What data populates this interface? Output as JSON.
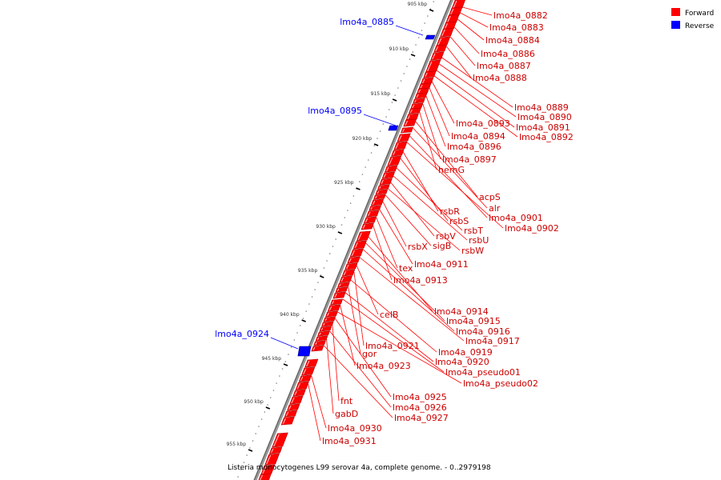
{
  "legend": {
    "forward": {
      "label": "Forward",
      "color": "#ff0000"
    },
    "reverse": {
      "label": "Reverse",
      "color": "#0000ff"
    }
  },
  "footer": "Listeria monocytogenes L99 serovar 4a, complete genome. - 0..2979198",
  "axis": {
    "ticks": [
      "905 kbp",
      "910 kbp",
      "915 kbp",
      "920 kbp",
      "925 kbp",
      "930 kbp",
      "935 kbp",
      "940 kbp",
      "945 kbp",
      "950 kbp",
      "955 kbp"
    ]
  },
  "reverse_genes": [
    "lmo4a_0885",
    "lmo4a_0895",
    "lmo4a_0924"
  ],
  "forward_genes": [
    "lmo4a_0882",
    "lmo4a_0883",
    "lmo4a_0884",
    "lmo4a_0886",
    "lmo4a_0887",
    "lmo4a_0888",
    "lmo4a_0889",
    "lmo4a_0890",
    "lmo4a_0891",
    "lmo4a_0892",
    "lmo4a_0893",
    "lmo4a_0894",
    "lmo4a_0896",
    "lmo4a_0897",
    "hemG",
    "acpS",
    "alr",
    "lmo4a_0901",
    "lmo4a_0902",
    "rsbR",
    "rsbS",
    "rsbT",
    "rsbU",
    "rsbV",
    "rsbW",
    "sigB",
    "rsbX",
    "lmo4a_0911",
    "tex",
    "lmo4a_0913",
    "lmo4a_0914",
    "lmo4a_0915",
    "lmo4a_0916",
    "lmo4a_0917",
    "celB",
    "lmo4a_0921",
    "lmo4a_0919",
    "gor",
    "lmo4a_0920",
    "lmo4a_pseudo01",
    "lmo4a_0923",
    "lmo4a_pseudo02",
    "lmo4a_0925",
    "fnt",
    "lmo4a_0926",
    "gabD",
    "lmo4a_0927",
    "lmo4a_0930",
    "lmo4a_0931"
  ]
}
